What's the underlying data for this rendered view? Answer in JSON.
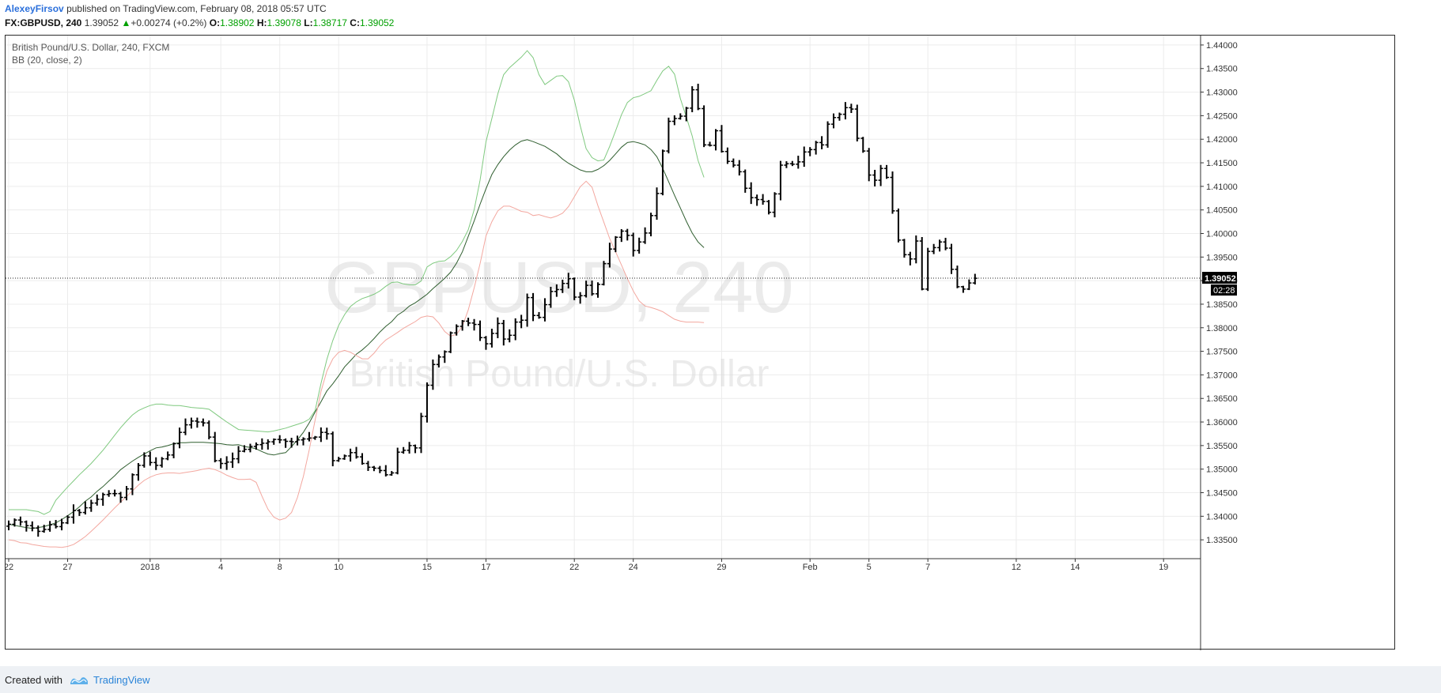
{
  "header": {
    "author": "AlexeyFirsov",
    "published_text": "published on TradingView.com, February 08, 2018 05:57 UTC",
    "symbol": "FX:GBPUSD, 240",
    "last_price": "1.39052",
    "change_arrow": "▲",
    "change": "+0.00274 (+0.2%)",
    "open_label": "O:",
    "open": "1.38902",
    "high_label": "H:",
    "high": "1.39078",
    "low_label": "L:",
    "low": "1.38717",
    "close_label": "C:",
    "close": "1.39052"
  },
  "chart_info": {
    "title": "British Pound/U.S. Dollar, 240, FXCM",
    "indicator": "BB (20, close, 2)"
  },
  "watermark": {
    "symbol": "GBPUSD, 240",
    "name": "British Pound/U.S. Dollar"
  },
  "price_tag": {
    "value": "1.39052",
    "countdown": "02:28"
  },
  "footer": {
    "created_with": "Created with",
    "brand": "TradingView"
  },
  "colors": {
    "bars": "#000000",
    "bb_upper": "#7fc97f",
    "bb_basis": "#2f5e2f",
    "bb_lower": "#f3a79f",
    "grid": "#ececec",
    "price_tag_bg": "#000000",
    "author": "#2a6fdb",
    "ohlc_value": "#00a000"
  },
  "chart_data": {
    "type": "ohlc",
    "title": "British Pound/U.S. Dollar, 240, FXCM",
    "indicator": "BB (20, close, 2)",
    "ylim": [
      1.331,
      1.442
    ],
    "yticks": [
      "1.44000",
      "1.43500",
      "1.43000",
      "1.42500",
      "1.42000",
      "1.41500",
      "1.41000",
      "1.40500",
      "1.40000",
      "1.39500",
      "1.39000",
      "1.38500",
      "1.38000",
      "1.37500",
      "1.37000",
      "1.36500",
      "1.36000",
      "1.35500",
      "1.35000",
      "1.34500",
      "1.34000",
      "1.33500"
    ],
    "xticks": [
      {
        "label": "22",
        "bar": 0
      },
      {
        "label": "27",
        "bar": 10
      },
      {
        "label": "2018",
        "bar": 24
      },
      {
        "label": "4",
        "bar": 36
      },
      {
        "label": "8",
        "bar": 46
      },
      {
        "label": "10",
        "bar": 56
      },
      {
        "label": "15",
        "bar": 71
      },
      {
        "label": "17",
        "bar": 81
      },
      {
        "label": "22",
        "bar": 96
      },
      {
        "label": "24",
        "bar": 106
      },
      {
        "label": "29",
        "bar": 121
      },
      {
        "label": "Feb",
        "bar": 136
      },
      {
        "label": "5",
        "bar": 146
      },
      {
        "label": "7",
        "bar": 156
      },
      {
        "label": "12",
        "bar": 171
      },
      {
        "label": "14",
        "bar": 181
      },
      {
        "label": "19",
        "bar": 196
      }
    ],
    "last_price": 1.39052,
    "close": [
      1.3383,
      1.3392,
      1.3388,
      1.338,
      1.3375,
      1.3368,
      1.3372,
      1.3382,
      1.3378,
      1.3386,
      1.3398,
      1.3412,
      1.3408,
      1.3418,
      1.3428,
      1.3436,
      1.3446,
      1.3448,
      1.3448,
      1.344,
      1.3458,
      1.3488,
      1.3508,
      1.3528,
      1.3514,
      1.3508,
      1.3522,
      1.353,
      1.3554,
      1.3578,
      1.3594,
      1.3602,
      1.36,
      1.3598,
      1.3568,
      1.3518,
      1.3512,
      1.3515,
      1.3522,
      1.3538,
      1.3542,
      1.3548,
      1.3552,
      1.3555,
      1.3558,
      1.3563,
      1.3562,
      1.3559,
      1.3558,
      1.3562,
      1.3564,
      1.3566,
      1.3568,
      1.3578,
      1.3575,
      1.3518,
      1.3522,
      1.3528,
      1.3535,
      1.3526,
      1.3512,
      1.3504,
      1.3502,
      1.3497,
      1.3488,
      1.3492,
      1.3536,
      1.354,
      1.355,
      1.3545,
      1.3612,
      1.3678,
      1.3722,
      1.3738,
      1.3749,
      1.3789,
      1.3803,
      1.3814,
      1.381,
      1.3807,
      1.3779,
      1.3766,
      1.3788,
      1.3809,
      1.3776,
      1.3784,
      1.3812,
      1.3816,
      1.3864,
      1.3826,
      1.3822,
      1.3849,
      1.3877,
      1.3881,
      1.3894,
      1.3904,
      1.3865,
      1.3868,
      1.389,
      1.3872,
      1.3892,
      1.3936,
      1.3967,
      1.3992,
      1.4005,
      1.3996,
      1.3964,
      1.3982,
      1.4001,
      1.4038,
      1.4085,
      1.4175,
      1.4238,
      1.4244,
      1.4249,
      1.4266,
      1.4305,
      1.4265,
      1.4188,
      1.4187,
      1.4218,
      1.4174,
      1.4153,
      1.4145,
      1.4131,
      1.4096,
      1.4076,
      1.4072,
      1.4068,
      1.4045,
      1.4084,
      1.4145,
      1.4148,
      1.4147,
      1.4152,
      1.4173,
      1.4178,
      1.4193,
      1.4188,
      1.4232,
      1.4246,
      1.4253,
      1.4267,
      1.4264,
      1.4202,
      1.4175,
      1.4124,
      1.4113,
      1.4138,
      1.4119,
      1.4048,
      1.3986,
      1.3955,
      1.3946,
      1.3984,
      1.3882,
      1.3962,
      1.397,
      1.3982,
      1.3969,
      1.3924,
      1.3887,
      1.3882,
      1.3895,
      1.3905
    ],
    "bb_upper": [
      1.3414,
      1.3414,
      1.3414,
      1.3414,
      1.3412,
      1.341,
      1.3404,
      1.341,
      1.3434,
      1.3448,
      1.3462,
      1.3475,
      1.3488,
      1.35,
      1.3512,
      1.3526,
      1.354,
      1.3556,
      1.3572,
      1.3588,
      1.3602,
      1.3615,
      1.3624,
      1.363,
      1.3635,
      1.3638,
      1.3638,
      1.3636,
      1.3635,
      1.3635,
      1.3633,
      1.3631,
      1.363,
      1.3629,
      1.3627,
      1.3618,
      1.3609,
      1.36,
      1.3592,
      1.3584,
      1.3583,
      1.3582,
      1.3581,
      1.358,
      1.3579,
      1.3581,
      1.3584,
      1.3587,
      1.3591,
      1.3595,
      1.3599,
      1.3606,
      1.3624,
      1.3682,
      1.3733,
      1.3773,
      1.3805,
      1.3828,
      1.3845,
      1.3855,
      1.3862,
      1.3866,
      1.3871,
      1.3878,
      1.3888,
      1.3896,
      1.3897,
      1.3893,
      1.3891,
      1.3891,
      1.3899,
      1.3929,
      1.3937,
      1.3941,
      1.3942,
      1.3951,
      1.3964,
      1.3983,
      1.4008,
      1.4051,
      1.4113,
      1.4195,
      1.4244,
      1.4296,
      1.4337,
      1.4352,
      1.4363,
      1.4374,
      1.4388,
      1.4373,
      1.4337,
      1.4316,
      1.4325,
      1.4334,
      1.4335,
      1.4322,
      1.4283,
      1.4229,
      1.418,
      1.4161,
      1.4154,
      1.4156,
      1.4185,
      1.4218,
      1.4252,
      1.4278,
      1.4288,
      1.4291,
      1.4297,
      1.4303,
      1.4325,
      1.4345,
      1.4355,
      1.4338,
      1.4286,
      1.4247,
      1.4207,
      1.4155,
      1.4119
    ],
    "bb_basis": [
      1.3383,
      1.3381,
      1.3378,
      1.3376,
      1.3374,
      1.3376,
      1.3378,
      1.3382,
      1.3386,
      1.3393,
      1.3401,
      1.341,
      1.342,
      1.3432,
      1.3441,
      1.3453,
      1.3463,
      1.3475,
      1.3486,
      1.3499,
      1.3508,
      1.3517,
      1.3525,
      1.3532,
      1.3539,
      1.3545,
      1.3547,
      1.355,
      1.3554,
      1.3556,
      1.3556,
      1.3557,
      1.3557,
      1.3557,
      1.3556,
      1.3555,
      1.3554,
      1.3552,
      1.3551,
      1.3552,
      1.3548,
      1.3546,
      1.3543,
      1.3537,
      1.3532,
      1.353,
      1.3533,
      1.3535,
      1.3548,
      1.3562,
      1.3578,
      1.3598,
      1.3621,
      1.3643,
      1.3666,
      1.3681,
      1.3698,
      1.3717,
      1.373,
      1.3744,
      1.3753,
      1.3764,
      1.3777,
      1.3791,
      1.3803,
      1.3813,
      1.3827,
      1.3835,
      1.3846,
      1.3853,
      1.3862,
      1.3871,
      1.3883,
      1.3894,
      1.3905,
      1.3918,
      1.3937,
      1.3961,
      1.3994,
      1.4027,
      1.4062,
      1.4095,
      1.4125,
      1.4146,
      1.4163,
      1.4177,
      1.4188,
      1.4196,
      1.4199,
      1.4195,
      1.419,
      1.4185,
      1.4177,
      1.4169,
      1.4158,
      1.4149,
      1.4142,
      1.4135,
      1.4131,
      1.4131,
      1.4136,
      1.4144,
      1.4155,
      1.4169,
      1.4183,
      1.4193,
      1.4195,
      1.4192,
      1.4188,
      1.4178,
      1.4163,
      1.4138,
      1.411,
      1.4081,
      1.4054,
      1.4026,
      1.4001,
      1.3982,
      1.397
    ],
    "bb_lower": [
      1.335,
      1.3348,
      1.3344,
      1.3343,
      1.334,
      1.3338,
      1.3336,
      1.3335,
      1.3335,
      1.3334,
      1.3336,
      1.334,
      1.3348,
      1.3357,
      1.3368,
      1.338,
      1.3392,
      1.3405,
      1.3418,
      1.343,
      1.3442,
      1.3454,
      1.3466,
      1.3476,
      1.3483,
      1.3488,
      1.3491,
      1.3492,
      1.3492,
      1.3491,
      1.3493,
      1.3495,
      1.3497,
      1.35,
      1.3502,
      1.3499,
      1.3494,
      1.3487,
      1.3482,
      1.3478,
      1.3478,
      1.3479,
      1.3472,
      1.3442,
      1.3415,
      1.3398,
      1.3392,
      1.3396,
      1.3408,
      1.344,
      1.3484,
      1.354,
      1.3604,
      1.3665,
      1.3708,
      1.3734,
      1.3748,
      1.3752,
      1.3748,
      1.3741,
      1.3734,
      1.3734,
      1.3746,
      1.3762,
      1.3774,
      1.3782,
      1.379,
      1.3799,
      1.3806,
      1.3813,
      1.3822,
      1.3825,
      1.3823,
      1.381,
      1.3792,
      1.3782,
      1.3786,
      1.3803,
      1.3838,
      1.3885,
      1.3936,
      1.3995,
      1.4025,
      1.4048,
      1.4058,
      1.4058,
      1.4053,
      1.4047,
      1.4045,
      1.4038,
      1.404,
      1.4036,
      1.4033,
      1.4037,
      1.4043,
      1.4057,
      1.4078,
      1.4099,
      1.4111,
      1.4098,
      1.4059,
      1.4024,
      1.3989,
      1.3961,
      1.3933,
      1.3904,
      1.3878,
      1.3857,
      1.3846,
      1.3843,
      1.3839,
      1.3834,
      1.3826,
      1.3818,
      1.3814,
      1.3812,
      1.3812,
      1.3812,
      1.3811
    ]
  }
}
